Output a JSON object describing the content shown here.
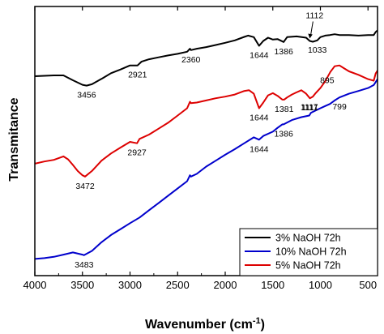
{
  "chart_data": {
    "type": "line",
    "xlabel": "Wavenumber (cm",
    "xlabel_sup": "-1",
    "xlabel_end": ")",
    "ylabel": "Transmitance",
    "xlim": [
      4000,
      400
    ],
    "ylim": [
      0,
      100
    ],
    "x_reversed": true,
    "y_tick_labels": false,
    "x_ticks": [
      {
        "value": 4000,
        "label": "4000"
      },
      {
        "value": 3500,
        "label": "3500"
      },
      {
        "value": 3000,
        "label": "3000"
      },
      {
        "value": 2500,
        "label": "2500"
      },
      {
        "value": 2000,
        "label": "2000"
      },
      {
        "value": 1500,
        "label": "1500"
      },
      {
        "value": 1000,
        "label": "1000"
      },
      {
        "value": 500,
        "label": "500"
      }
    ],
    "legend_position": "bottom-right",
    "series": [
      {
        "name": "3% NaOH 72h",
        "color": "#000000",
        "points": [
          [
            4000,
            74.1
          ],
          [
            3800,
            74.4
          ],
          [
            3700,
            74.4
          ],
          [
            3600,
            72.6
          ],
          [
            3500,
            70.9
          ],
          [
            3456,
            70.6
          ],
          [
            3400,
            71.1
          ],
          [
            3300,
            73.1
          ],
          [
            3200,
            75.2
          ],
          [
            3100,
            76.6
          ],
          [
            3000,
            78.1
          ],
          [
            2921,
            78.1
          ],
          [
            2880,
            79.5
          ],
          [
            2800,
            80.4
          ],
          [
            2700,
            81.1
          ],
          [
            2600,
            81.8
          ],
          [
            2500,
            82.4
          ],
          [
            2400,
            83.2
          ],
          [
            2370,
            84.3
          ],
          [
            2360,
            83.8
          ],
          [
            2300,
            84.3
          ],
          [
            2200,
            84.9
          ],
          [
            2100,
            85.7
          ],
          [
            2000,
            86.5
          ],
          [
            1900,
            87.4
          ],
          [
            1800,
            88.7
          ],
          [
            1760,
            89.2
          ],
          [
            1700,
            88.6
          ],
          [
            1644,
            85.4
          ],
          [
            1600,
            87.2
          ],
          [
            1550,
            88.4
          ],
          [
            1500,
            87.7
          ],
          [
            1450,
            87.9
          ],
          [
            1386,
            86.8
          ],
          [
            1350,
            88.6
          ],
          [
            1250,
            88.9
          ],
          [
            1150,
            88.4
          ],
          [
            1112,
            87.2
          ],
          [
            1080,
            86.9
          ],
          [
            1033,
            87.4
          ],
          [
            1000,
            88.6
          ],
          [
            950,
            89.2
          ],
          [
            900,
            89.4
          ],
          [
            850,
            89.7
          ],
          [
            800,
            89.4
          ],
          [
            700,
            89.4
          ],
          [
            600,
            89.2
          ],
          [
            500,
            89.4
          ],
          [
            440,
            89.4
          ],
          [
            420,
            90.5
          ],
          [
            400,
            91.1
          ]
        ]
      },
      {
        "name": "10% NaOH 72h",
        "color": "#0000cc",
        "points": [
          [
            4000,
            6.2
          ],
          [
            3900,
            6.5
          ],
          [
            3800,
            7.0
          ],
          [
            3700,
            7.8
          ],
          [
            3600,
            8.6
          ],
          [
            3500,
            7.8
          ],
          [
            3483,
            7.6
          ],
          [
            3400,
            9.2
          ],
          [
            3300,
            12.4
          ],
          [
            3200,
            15.1
          ],
          [
            3100,
            17.3
          ],
          [
            3000,
            19.5
          ],
          [
            2900,
            21.6
          ],
          [
            2800,
            24.3
          ],
          [
            2700,
            27.0
          ],
          [
            2600,
            29.7
          ],
          [
            2500,
            32.4
          ],
          [
            2400,
            35.1
          ],
          [
            2370,
            37.3
          ],
          [
            2360,
            36.8
          ],
          [
            2300,
            37.8
          ],
          [
            2200,
            40.5
          ],
          [
            2100,
            42.7
          ],
          [
            2000,
            44.9
          ],
          [
            1900,
            47.0
          ],
          [
            1800,
            49.2
          ],
          [
            1700,
            51.4
          ],
          [
            1644,
            50.5
          ],
          [
            1600,
            51.9
          ],
          [
            1500,
            53.5
          ],
          [
            1450,
            54.9
          ],
          [
            1400,
            56.2
          ],
          [
            1386,
            56.2
          ],
          [
            1300,
            57.8
          ],
          [
            1200,
            58.9
          ],
          [
            1117,
            59.5
          ],
          [
            1100,
            60.5
          ],
          [
            1000,
            62.2
          ],
          [
            950,
            63.0
          ],
          [
            900,
            63.8
          ],
          [
            850,
            65.1
          ],
          [
            800,
            66.2
          ],
          [
            700,
            67.6
          ],
          [
            600,
            68.6
          ],
          [
            500,
            69.7
          ],
          [
            440,
            70.8
          ],
          [
            420,
            71.9
          ],
          [
            400,
            73.0
          ]
        ]
      },
      {
        "name": "5% NaOH 72h",
        "color": "#dd0000",
        "points": [
          [
            4000,
            41.6
          ],
          [
            3900,
            42.4
          ],
          [
            3800,
            43.0
          ],
          [
            3700,
            44.3
          ],
          [
            3650,
            43.2
          ],
          [
            3600,
            41.1
          ],
          [
            3550,
            38.9
          ],
          [
            3500,
            37.3
          ],
          [
            3472,
            36.8
          ],
          [
            3400,
            38.9
          ],
          [
            3300,
            42.7
          ],
          [
            3200,
            45.4
          ],
          [
            3100,
            47.6
          ],
          [
            3000,
            49.7
          ],
          [
            2927,
            49.2
          ],
          [
            2900,
            50.8
          ],
          [
            2800,
            52.4
          ],
          [
            2700,
            54.6
          ],
          [
            2600,
            56.8
          ],
          [
            2500,
            59.5
          ],
          [
            2400,
            62.2
          ],
          [
            2370,
            64.6
          ],
          [
            2360,
            64.1
          ],
          [
            2300,
            64.3
          ],
          [
            2200,
            65.1
          ],
          [
            2100,
            65.9
          ],
          [
            2000,
            66.5
          ],
          [
            1900,
            67.3
          ],
          [
            1800,
            68.6
          ],
          [
            1750,
            68.9
          ],
          [
            1700,
            67.6
          ],
          [
            1644,
            62.2
          ],
          [
            1600,
            64.3
          ],
          [
            1550,
            67.0
          ],
          [
            1500,
            67.8
          ],
          [
            1450,
            66.8
          ],
          [
            1400,
            65.4
          ],
          [
            1381,
            65.4
          ],
          [
            1350,
            66.2
          ],
          [
            1300,
            67.3
          ],
          [
            1250,
            68.1
          ],
          [
            1200,
            68.9
          ],
          [
            1150,
            67.6
          ],
          [
            1111,
            65.9
          ],
          [
            1080,
            66.5
          ],
          [
            1050,
            67.8
          ],
          [
            1000,
            69.7
          ],
          [
            950,
            72.2
          ],
          [
            895,
            75.7
          ],
          [
            850,
            77.8
          ],
          [
            800,
            78.1
          ],
          [
            750,
            77.0
          ],
          [
            700,
            75.9
          ],
          [
            600,
            74.6
          ],
          [
            500,
            73.0
          ],
          [
            440,
            72.4
          ],
          [
            420,
            75.1
          ],
          [
            400,
            76.2
          ]
        ]
      }
    ],
    "annotations": [
      {
        "series": 0,
        "text": "3456",
        "x": 3456,
        "y": 70.6,
        "pos": "below"
      },
      {
        "series": 0,
        "text": "2921",
        "x": 2921,
        "y": 78.1,
        "pos": "below"
      },
      {
        "series": 0,
        "text": "2360",
        "x": 2360,
        "y": 83.8,
        "pos": "below"
      },
      {
        "series": 0,
        "text": "1644",
        "x": 1644,
        "y": 85.4,
        "pos": "below"
      },
      {
        "series": 0,
        "text": "1386",
        "x": 1386,
        "y": 86.8,
        "pos": "below"
      },
      {
        "series": 0,
        "text": "1033",
        "x": 1033,
        "y": 87.4,
        "pos": "below"
      },
      {
        "series": 0,
        "text": "1112",
        "x": 1112,
        "y": 87.2,
        "pos": "arrow-above"
      },
      {
        "series": 2,
        "text": "3472",
        "x": 3472,
        "y": 36.8,
        "pos": "below"
      },
      {
        "series": 2,
        "text": "2927",
        "x": 2927,
        "y": 49.2,
        "pos": "below"
      },
      {
        "series": 2,
        "text": "1644",
        "x": 1644,
        "y": 62.2,
        "pos": "below"
      },
      {
        "series": 2,
        "text": "1381",
        "x": 1381,
        "y": 65.4,
        "pos": "below"
      },
      {
        "series": 2,
        "text": "1111",
        "x": 1111,
        "y": 65.9,
        "pos": "below"
      },
      {
        "series": 2,
        "text": "895",
        "x": 895,
        "y": 75.7,
        "pos": "below-left"
      },
      {
        "series": 1,
        "text": "3483",
        "x": 3483,
        "y": 7.6,
        "pos": "below"
      },
      {
        "series": 1,
        "text": "1644",
        "x": 1644,
        "y": 50.5,
        "pos": "below"
      },
      {
        "series": 1,
        "text": "1386",
        "x": 1386,
        "y": 56.2,
        "pos": "below"
      },
      {
        "series": 1,
        "text": "1117",
        "x": 1117,
        "y": 59.5,
        "pos": "above"
      },
      {
        "series": 1,
        "text": "799",
        "x": 799,
        "y": 66.2,
        "pos": "below"
      }
    ]
  }
}
